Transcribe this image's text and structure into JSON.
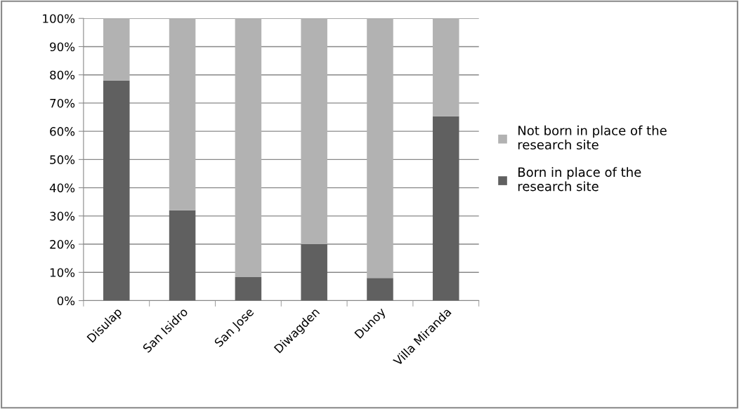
{
  "chart_data": {
    "type": "bar",
    "stacked": true,
    "categories": [
      "Disulap",
      "San Isidro",
      "San Jose",
      "Diwagden",
      "Dunoy",
      "Villa Miranda"
    ],
    "series": [
      {
        "name": "Born in place of the research site",
        "color": "#606060",
        "values": [
          78,
          32,
          8.3,
          20,
          8,
          65.3
        ]
      },
      {
        "name": "Not born in place of the research site",
        "color": "#b2b2b2",
        "values": [
          22,
          68,
          91.7,
          80,
          92,
          34.7
        ]
      }
    ],
    "ylim": [
      0,
      100
    ],
    "yticks": [
      {
        "value": 0,
        "label": "0%"
      },
      {
        "value": 10,
        "label": "10%"
      },
      {
        "value": 20,
        "label": "20%"
      },
      {
        "value": 30,
        "label": "30%"
      },
      {
        "value": 40,
        "label": "40%"
      },
      {
        "value": 50,
        "label": "50%"
      },
      {
        "value": 60,
        "label": "60%"
      },
      {
        "value": 70,
        "label": "70%"
      },
      {
        "value": 80,
        "label": "80%"
      },
      {
        "value": 90,
        "label": "90%"
      },
      {
        "value": 100,
        "label": "100%"
      }
    ],
    "grid": "y",
    "legend": "right"
  }
}
